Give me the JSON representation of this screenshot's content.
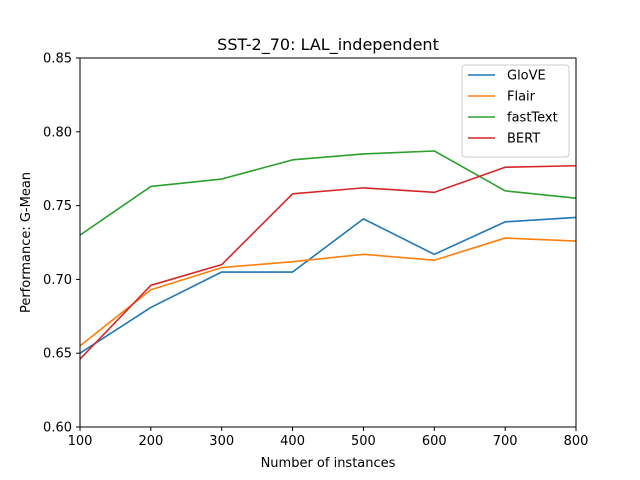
{
  "chart_data": {
    "type": "line",
    "title": "SST-2_70: LAL_independent",
    "xlabel": "Number of instances",
    "ylabel": "Performance: G-Mean",
    "x": [
      100,
      200,
      300,
      400,
      500,
      600,
      700,
      800
    ],
    "xlim": [
      100,
      800
    ],
    "ylim": [
      0.6,
      0.85
    ],
    "xticks": [
      "100",
      "200",
      "300",
      "400",
      "500",
      "600",
      "700",
      "800"
    ],
    "xtick_values": [
      100,
      200,
      300,
      400,
      500,
      600,
      700,
      800
    ],
    "yticks": [
      "0.60",
      "0.65",
      "0.70",
      "0.75",
      "0.80",
      "0.85"
    ],
    "ytick_values": [
      0.6,
      0.65,
      0.7,
      0.75,
      0.8,
      0.85
    ],
    "grid": false,
    "legend_position": "top-right",
    "series": [
      {
        "name": "GloVE",
        "color": "#1f77b4",
        "values": [
          0.65,
          0.681,
          0.705,
          0.705,
          0.741,
          0.717,
          0.739,
          0.742
        ]
      },
      {
        "name": "Flair",
        "color": "#ff7f0e",
        "values": [
          0.655,
          0.693,
          0.708,
          0.712,
          0.717,
          0.713,
          0.728,
          0.726
        ]
      },
      {
        "name": "fastText",
        "color": "#2ca02c",
        "values": [
          0.73,
          0.763,
          0.768,
          0.781,
          0.785,
          0.787,
          0.76,
          0.755
        ]
      },
      {
        "name": "BERT",
        "color": "#d62728",
        "values": [
          0.646,
          0.696,
          0.71,
          0.758,
          0.762,
          0.759,
          0.776,
          0.777
        ]
      }
    ]
  }
}
